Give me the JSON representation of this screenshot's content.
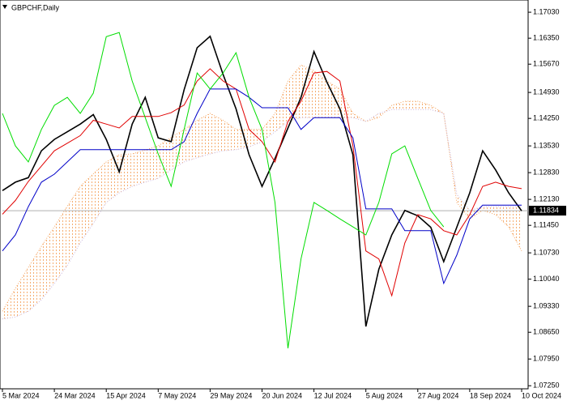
{
  "chart_data": {
    "type": "line",
    "title": "GBPCHF,Daily",
    "x": [
      0,
      4,
      8,
      12,
      16,
      20,
      24,
      28,
      32,
      36,
      40,
      44,
      48,
      52,
      56,
      60,
      64,
      68,
      72,
      76,
      80,
      84,
      88,
      92,
      96,
      100,
      104,
      108,
      112,
      116,
      120,
      124,
      128,
      132,
      136,
      140,
      144,
      148,
      152,
      156,
      160
    ],
    "xlim": [
      0,
      162
    ],
    "xticks": [
      {
        "value": 0,
        "label": "5 Mar 2024"
      },
      {
        "value": 16,
        "label": "24 Mar 2024"
      },
      {
        "value": 32,
        "label": "15 Apr 2024"
      },
      {
        "value": 48,
        "label": "7 May 2024"
      },
      {
        "value": 64,
        "label": "29 May 2024"
      },
      {
        "value": 80,
        "label": "20 Jun 2024"
      },
      {
        "value": 96,
        "label": "12 Jul 2024"
      },
      {
        "value": 112,
        "label": "5 Aug 2024"
      },
      {
        "value": 128,
        "label": "27 Aug 2024"
      },
      {
        "value": 144,
        "label": "18 Sep 2024"
      },
      {
        "value": 160,
        "label": "10 Oct 2024"
      }
    ],
    "ylim": [
      1.0717,
      1.1735
    ],
    "yticks": [
      {
        "value": 1.1703,
        "label": "1.17030"
      },
      {
        "value": 1.1635,
        "label": "1.16350"
      },
      {
        "value": 1.1567,
        "label": "1.15670"
      },
      {
        "value": 1.1493,
        "label": "1.14930"
      },
      {
        "value": 1.1425,
        "label": "1.14250"
      },
      {
        "value": 1.1353,
        "label": "1.13530"
      },
      {
        "value": 1.1283,
        "label": "1.12830"
      },
      {
        "value": 1.1213,
        "label": "1.12130"
      },
      {
        "value": 1.1145,
        "label": "1.11450"
      },
      {
        "value": 1.1073,
        "label": "1.10730"
      },
      {
        "value": 1.1004,
        "label": "1.10040"
      },
      {
        "value": 1.0933,
        "label": "1.09330"
      },
      {
        "value": 1.0865,
        "label": "1.08650"
      },
      {
        "value": 1.0795,
        "label": "1.07950"
      },
      {
        "value": 1.0725,
        "label": "1.07250"
      }
    ],
    "current_price": {
      "value": 1.11834,
      "label": "1.11834"
    },
    "series": [
      {
        "color": "#000000",
        "values": [
          1.1236,
          1.1258,
          1.127,
          1.134,
          1.137,
          1.139,
          1.141,
          1.1435,
          1.137,
          1.1285,
          1.141,
          1.148,
          1.1374,
          1.1364,
          1.15,
          1.161,
          1.164,
          1.154,
          1.145,
          1.133,
          1.1247,
          1.132,
          1.14,
          1.148,
          1.16,
          1.152,
          1.145,
          1.133,
          1.088,
          1.103,
          1.112,
          1.1184,
          1.117,
          1.114,
          1.105,
          1.114,
          1.123,
          1.134,
          1.129,
          1.123,
          1.1183
        ]
      },
      {
        "color": "#e00000",
        "values": [
          1.1174,
          1.121,
          1.126,
          1.13,
          1.134,
          1.136,
          1.138,
          1.142,
          1.141,
          1.14,
          1.143,
          1.143,
          1.143,
          1.144,
          1.146,
          1.1523,
          1.1555,
          1.1523,
          1.1502,
          1.1396,
          1.1364,
          1.1311,
          1.1417,
          1.147,
          1.1544,
          1.1548,
          1.1523,
          1.1353,
          1.1078,
          1.1057,
          1.0961,
          1.1099,
          1.1173,
          1.1162,
          1.1131,
          1.112,
          1.1173,
          1.1247,
          1.1258,
          1.1247,
          1.1241
        ]
      },
      {
        "color": "#0000c8",
        "values": [
          1.1078,
          1.112,
          1.1194,
          1.1258,
          1.1279,
          1.1311,
          1.1343,
          1.1343,
          1.1343,
          1.1343,
          1.1343,
          1.1343,
          1.1343,
          1.1343,
          1.1364,
          1.1438,
          1.1502,
          1.1502,
          1.1502,
          1.148,
          1.1453,
          1.1453,
          1.1453,
          1.1396,
          1.1427,
          1.1427,
          1.1427,
          1.1374,
          1.1188,
          1.1188,
          1.1188,
          1.1131,
          1.1131,
          1.1131,
          1.0993,
          1.1067,
          1.1162,
          1.1198,
          1.1198,
          1.1198,
          1.1198
        ]
      },
      {
        "color": "#00dd00",
        "values": [
          1.1438,
          1.1353,
          1.1311,
          1.1396,
          1.1459,
          1.148,
          1.1438,
          1.1491,
          1.1639,
          1.165,
          1.1523,
          1.1427,
          1.1332,
          1.1247,
          1.1396,
          1.1544,
          1.1502,
          1.1544,
          1.1597,
          1.148,
          1.1396,
          1.1205,
          1.0823,
          1.1057,
          1.1205,
          1.1184,
          1.1162,
          1.1141,
          1.112,
          1.1205,
          1.1332,
          1.1353,
          1.1268,
          1.1184,
          1.1141,
          null,
          null,
          null,
          null,
          null,
          null
        ]
      }
    ],
    "cloud": [
      {
        "color": "#f4a460",
        "values": [
          1.092,
          1.098,
          1.1035,
          1.109,
          1.1141,
          1.1195,
          1.1247,
          1.128,
          1.1311,
          1.133,
          1.1332,
          1.1342,
          1.1353,
          1.1375,
          1.1396,
          1.142,
          1.1438,
          1.142,
          1.1396,
          1.1396,
          1.1396,
          1.1438,
          1.1523,
          1.1565,
          1.155,
          1.1523,
          1.1502,
          1.1438,
          1.1417,
          1.1427,
          1.1459,
          1.147,
          1.147,
          1.1459,
          1.1438,
          1.1205,
          1.1162,
          1.1184,
          1.1173,
          1.1141,
          1.1078
        ]
      },
      {
        "color": "#c8b4dc",
        "values": [
          1.09,
          1.0905,
          1.092,
          1.095,
          1.0993,
          1.104,
          1.1099,
          1.115,
          1.1205,
          1.123,
          1.1247,
          1.1258,
          1.1268,
          1.129,
          1.1311,
          1.1322,
          1.1332,
          1.134,
          1.1343,
          1.135,
          1.1364,
          1.139,
          1.1417,
          1.1427,
          1.1427,
          1.1427,
          1.1427,
          1.1427,
          1.1417,
          1.1438,
          1.1448,
          1.1448,
          1.1448,
          1.1448,
          1.1438,
          1.1226,
          1.1184,
          1.1194,
          1.1194,
          1.1194,
          1.1194
        ]
      }
    ]
  }
}
